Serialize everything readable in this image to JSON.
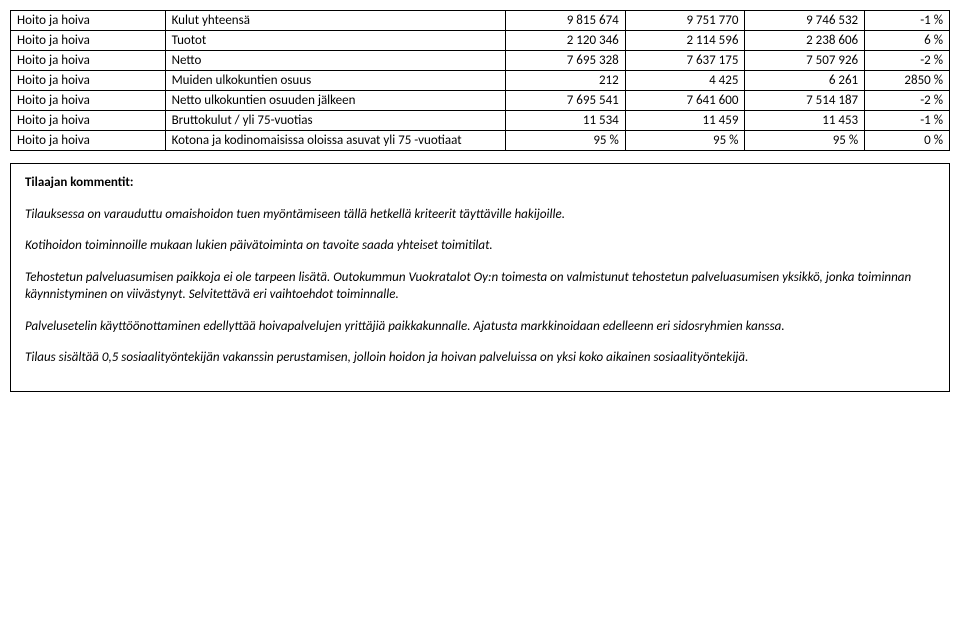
{
  "table": {
    "col_widths": [
      "120px",
      "280px",
      "90px",
      "90px",
      "90px",
      "60px"
    ],
    "rows": [
      {
        "cat": "Hoito ja hoiva",
        "name": "Kulut yhteensä",
        "v1": "9 815 674",
        "v2": "9 751 770",
        "v3": "9 746 532",
        "pct": "-1 %"
      },
      {
        "cat": "Hoito ja hoiva",
        "name": "Tuotot",
        "v1": "2 120 346",
        "v2": "2 114 596",
        "v3": "2 238 606",
        "pct": "6 %"
      },
      {
        "cat": "Hoito ja hoiva",
        "name": "Netto",
        "v1": "7 695 328",
        "v2": "7 637 175",
        "v3": "7 507 926",
        "pct": "-2 %"
      },
      {
        "cat": "Hoito ja hoiva",
        "name": "Muiden ulkokuntien osuus",
        "v1": "212",
        "v2": "4 425",
        "v3": "6 261",
        "pct": "2850 %"
      },
      {
        "cat": "Hoito ja hoiva",
        "name": "Netto ulkokuntien osuuden jälkeen",
        "v1": "7 695 541",
        "v2": "7 641 600",
        "v3": "7 514 187",
        "pct": "-2 %"
      },
      {
        "cat": "Hoito ja hoiva",
        "name": "Bruttokulut / yli 75-vuotias",
        "v1": "11 534",
        "v2": "11 459",
        "v3": "11 453",
        "pct": "-1 %"
      },
      {
        "cat": "Hoito ja hoiva",
        "name": "Kotona ja kodinomaisissa oloissa asuvat yli 75 -vuotiaat",
        "v1": "95 %",
        "v2": "95 %",
        "v3": "95 %",
        "pct": "0 %"
      }
    ]
  },
  "comments": {
    "heading": "Tilaajan kommentit:",
    "paragraphs": [
      "Tilauksessa on varauduttu omaishoidon tuen myöntämiseen tällä hetkellä kriteerit täyttäville hakijoille.",
      "Kotihoidon toiminnoille mukaan lukien päivätoiminta on tavoite saada yhteiset toimitilat.",
      "Tehostetun palveluasumisen paikkoja ei ole tarpeen lisätä. Outokummun Vuokratalot Oy:n toimesta on valmistunut tehostetun palveluasumisen yksikkö, jonka toiminnan käynnistyminen on viivästynyt. Selvitettävä eri vaihtoehdot toiminnalle.",
      "Palvelusetelin käyttöönottaminen edellyttää hoivapalvelujen yrittäjiä paikkakunnalle. Ajatusta markkinoidaan edelleenn eri sidosryhmien kanssa.",
      "Tilaus sisältää 0,5 sosiaalityöntekijän vakanssin perustamisen, jolloin hoidon ja hoivan palveluissa on yksi koko aikainen sosiaalityöntekijä."
    ]
  },
  "styling": {
    "body_font_size": 13,
    "font_family": "Calibri, Arial, sans-serif",
    "border_color": "#000000",
    "background_color": "#ffffff",
    "text_color": "#000000"
  }
}
